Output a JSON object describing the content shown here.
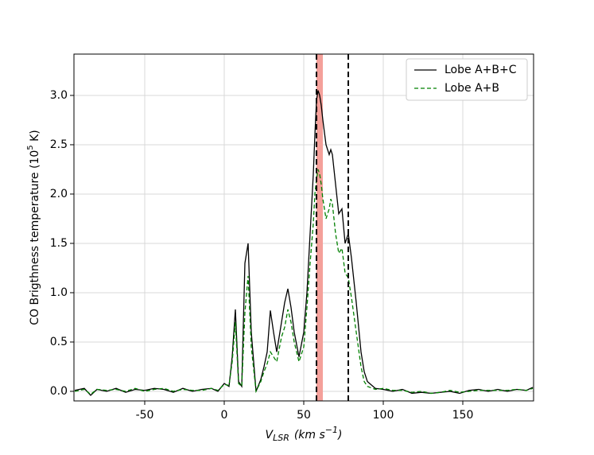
{
  "chart_data": {
    "type": "line",
    "xlabel": [
      "V",
      "LSR",
      "(km s",
      "−1",
      ")"
    ],
    "ylabel": [
      "CO Brigthness temperature (10",
      "5",
      " K)"
    ],
    "x": [
      -94,
      -88,
      -84,
      -80,
      -74,
      -68,
      -62,
      -56,
      -50,
      -44,
      -38,
      -32,
      -26,
      -20,
      -14,
      -8,
      -4,
      0,
      3,
      5,
      7,
      9,
      11,
      13,
      15,
      17,
      20,
      23,
      25,
      27,
      29,
      31,
      33,
      36,
      38,
      40,
      42,
      44,
      47,
      50,
      52,
      54,
      56,
      57,
      58,
      59,
      60,
      61,
      62,
      64,
      66,
      67,
      68,
      70,
      72,
      74,
      76,
      78,
      80,
      83,
      86,
      88,
      90,
      95,
      100,
      106,
      112,
      118,
      124,
      130,
      136,
      142,
      148,
      154,
      160,
      166,
      172,
      178,
      184,
      190,
      194
    ],
    "series": [
      {
        "name": "Lobe A+B+C",
        "color": "#000000",
        "dash": false,
        "values": [
          0.01,
          0.03,
          -0.04,
          0.02,
          0.0,
          0.03,
          -0.01,
          0.02,
          0.01,
          0.03,
          0.02,
          -0.01,
          0.03,
          0.0,
          0.02,
          0.03,
          0.0,
          0.08,
          0.05,
          0.35,
          0.83,
          0.1,
          0.05,
          1.3,
          1.5,
          0.6,
          0.0,
          0.12,
          0.25,
          0.4,
          0.82,
          0.6,
          0.4,
          0.7,
          0.9,
          1.04,
          0.85,
          0.6,
          0.35,
          0.6,
          1.0,
          1.6,
          2.2,
          2.6,
          2.95,
          3.05,
          3.0,
          2.9,
          2.75,
          2.5,
          2.4,
          2.45,
          2.4,
          2.1,
          1.8,
          1.85,
          1.5,
          1.6,
          1.35,
          0.9,
          0.4,
          0.2,
          0.1,
          0.03,
          0.02,
          0.0,
          0.02,
          -0.02,
          -0.01,
          -0.02,
          -0.01,
          0.0,
          -0.02,
          0.01,
          0.02,
          0.0,
          0.02,
          0.0,
          0.02,
          0.01,
          0.04
        ]
      },
      {
        "name": "Lobe A+B",
        "color": "#008000",
        "dash": true,
        "values": [
          0.0,
          0.02,
          -0.03,
          0.02,
          0.01,
          0.02,
          0.0,
          0.03,
          0.0,
          0.02,
          0.03,
          0.0,
          0.02,
          0.01,
          0.01,
          0.03,
          0.01,
          0.07,
          0.06,
          0.3,
          0.7,
          0.08,
          0.05,
          0.8,
          1.17,
          0.45,
          0.0,
          0.1,
          0.2,
          0.28,
          0.4,
          0.35,
          0.3,
          0.55,
          0.65,
          0.83,
          0.7,
          0.5,
          0.3,
          0.45,
          0.85,
          1.3,
          1.7,
          2.0,
          2.15,
          2.25,
          2.2,
          2.1,
          1.95,
          1.75,
          1.85,
          1.95,
          1.9,
          1.6,
          1.4,
          1.45,
          1.2,
          1.15,
          0.95,
          0.6,
          0.25,
          0.1,
          0.05,
          0.02,
          0.03,
          0.01,
          0.01,
          -0.01,
          0.0,
          -0.02,
          -0.01,
          0.01,
          -0.01,
          0.0,
          0.01,
          0.01,
          0.01,
          0.01,
          0.02,
          0.01,
          0.03
        ]
      }
    ],
    "vlines": [
      58,
      78
    ],
    "vspan": [
      58,
      62
    ],
    "vspan_color": "#f4a09a",
    "xlim": [
      -94.5,
      194.5
    ],
    "ylim": [
      -0.097,
      3.419
    ],
    "xticks": [
      -50,
      0,
      50,
      100,
      150
    ],
    "yticks": [
      {
        "value": 0,
        "label": "0.0"
      },
      0.5,
      {
        "value": 1,
        "label": "1.0"
      },
      1.5,
      {
        "value": 2,
        "label": "2.0"
      },
      2.5,
      {
        "value": 3,
        "label": "3.0"
      }
    ],
    "grid": true,
    "legend": "upper right"
  }
}
